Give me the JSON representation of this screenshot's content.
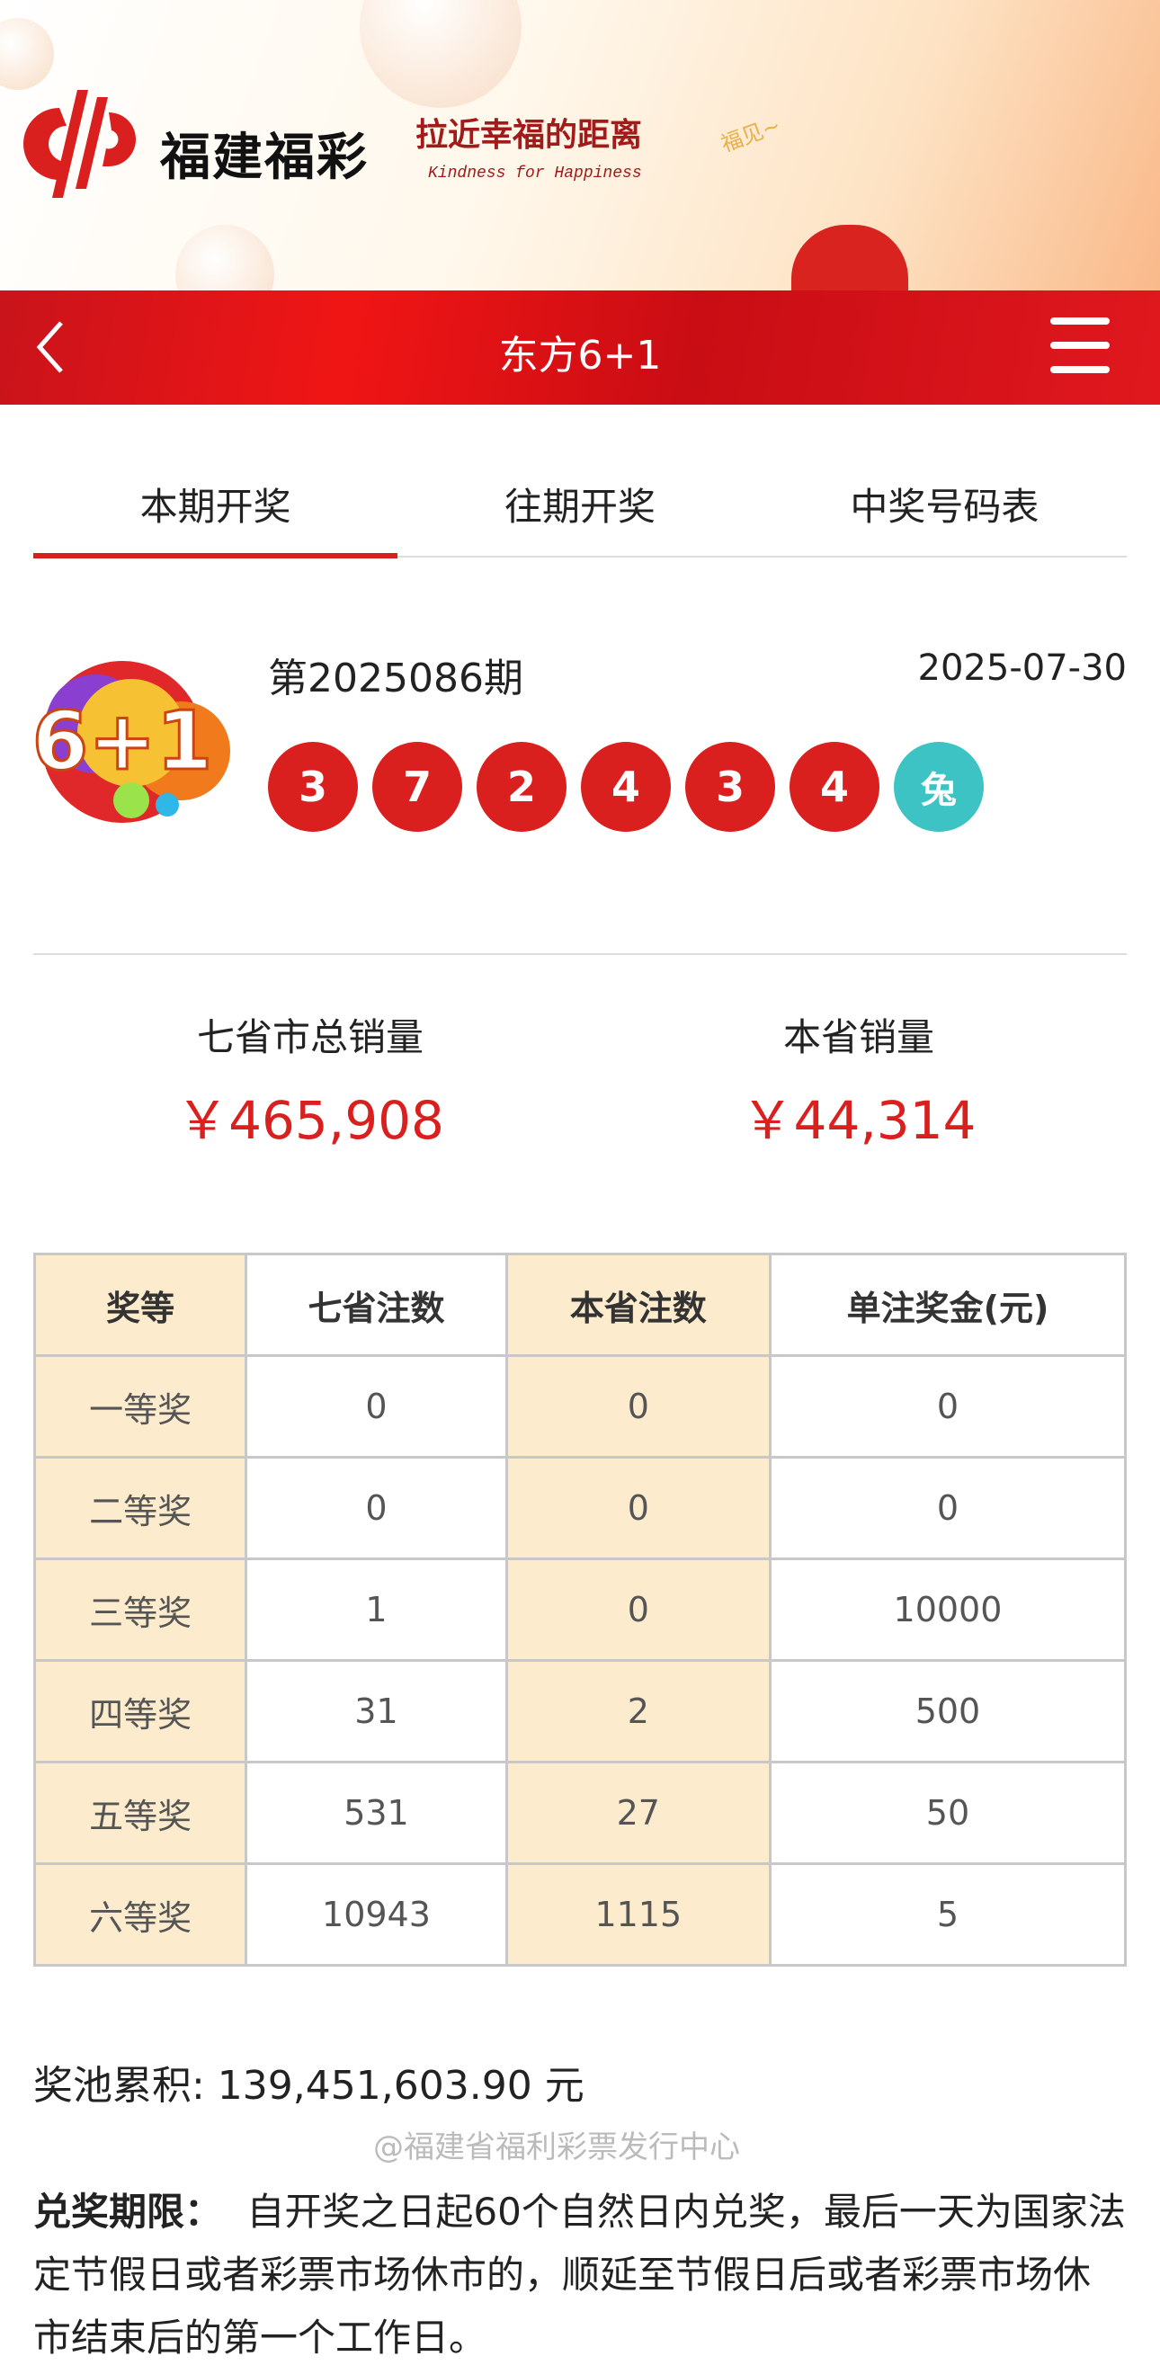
{
  "banner": {
    "brand": "福建福彩",
    "slogan": "拉近幸福的距离",
    "slogan_en": "Kindness for Happiness",
    "deco_text": "福见~"
  },
  "navbar": {
    "title": "东方6+1",
    "back_icon": "chevron-left-icon",
    "menu_icon": "hamburger-menu-icon"
  },
  "tabs": [
    {
      "label": "本期开奖",
      "active": true
    },
    {
      "label": "往期开奖",
      "active": false
    },
    {
      "label": "中奖号码表",
      "active": false
    }
  ],
  "draw": {
    "logo_text": "6+1",
    "issue": "第2025086期",
    "date": "2025-07-30",
    "numbers": [
      "3",
      "7",
      "2",
      "4",
      "3",
      "4"
    ],
    "bonus": "兔"
  },
  "sales": {
    "total_label": "七省市总销量",
    "total_value": "￥465,908",
    "province_label": "本省销量",
    "province_value": "￥44,314"
  },
  "table": {
    "headers": [
      "奖等",
      "七省注数",
      "本省注数",
      "单注奖金(元)"
    ],
    "rows": [
      [
        "一等奖",
        "0",
        "0",
        "0"
      ],
      [
        "二等奖",
        "0",
        "0",
        "0"
      ],
      [
        "三等奖",
        "1",
        "0",
        "10000"
      ],
      [
        "四等奖",
        "31",
        "2",
        "500"
      ],
      [
        "五等奖",
        "531",
        "27",
        "50"
      ],
      [
        "六等奖",
        "10943",
        "1115",
        "5"
      ]
    ]
  },
  "pool": "奖池累积: 139,451,603.90 元",
  "rules": {
    "label": "兑奖期限：",
    "text": "自开奖之日起60个自然日内兑奖，最后一天为国家法定节假日或者彩票市场休市的，顺延至节假日后或者彩票市场休市结束后的第一个工作日。"
  },
  "watermark": "@福建省福利彩票发行中心",
  "colors": {
    "accent": "#d9201e",
    "bonus": "#3dc3c3",
    "table_highlight": "#fcebcc"
  }
}
